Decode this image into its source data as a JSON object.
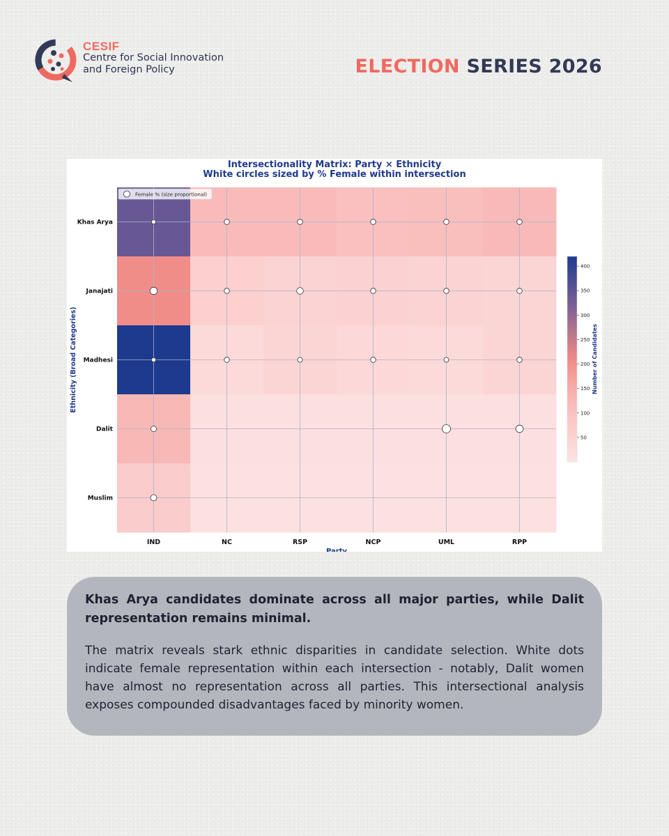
{
  "header": {
    "org_abbr": "CESIF",
    "org_line1": "Centre for Social Innovation",
    "org_line2": "and Foreign Policy",
    "series_accent": "ELECTION",
    "series_rest": "SERIES 2026"
  },
  "colors": {
    "accent": "#ee6a60",
    "navy": "#323a55",
    "chart_title": "#1f3a8a",
    "panel": "#b4b6bd",
    "cmap": [
      "#fde4e4",
      "#f8b5b3",
      "#f08a86",
      "#6b5a95",
      "#1e3a8e"
    ]
  },
  "chart_data": {
    "type": "heatmap",
    "title": "Intersectionality Matrix: Party × Ethnicity",
    "subtitle": "White circles sized by % Female within intersection",
    "xlabel": "Party",
    "ylabel": "Ethnicity (Broad Categories)",
    "x_categories": [
      "IND",
      "NC",
      "RSP",
      "NCP",
      "UML",
      "RPP"
    ],
    "y_categories": [
      "Khas Arya",
      "Janajati",
      "Madhesi",
      "Dalit",
      "Muslim"
    ],
    "values": [
      [
        340,
        120,
        120,
        105,
        110,
        125
      ],
      [
        205,
        60,
        50,
        55,
        50,
        45
      ],
      [
        420,
        30,
        45,
        35,
        30,
        45
      ],
      [
        130,
        15,
        15,
        15,
        15,
        15
      ],
      [
        70,
        10,
        10,
        10,
        10,
        10
      ]
    ],
    "female_pct": [
      [
        12,
        18,
        18,
        18,
        18,
        18
      ],
      [
        35,
        18,
        28,
        18,
        18,
        18
      ],
      [
        12,
        18,
        15,
        18,
        15,
        18
      ],
      [
        20,
        null,
        null,
        null,
        45,
        35
      ],
      [
        25,
        null,
        null,
        null,
        null,
        null
      ]
    ],
    "colorbar": {
      "label": "Number of Candidates",
      "ticks": [
        50,
        100,
        150,
        200,
        250,
        300,
        350,
        400
      ],
      "range": [
        0,
        420
      ]
    },
    "legend": {
      "label": "Female % (size proportional)",
      "position": "top-left"
    }
  },
  "text_panel": {
    "headline": "Khas Arya candidates dominate across all major parties, while Dalit representation remains minimal.",
    "body": "The matrix reveals stark ethnic disparities in candidate selection. White dots indicate female representation within each intersection - notably, Dalit women have almost no representation across all parties. This intersectional analysis exposes compounded disadvantages faced by minority women."
  }
}
